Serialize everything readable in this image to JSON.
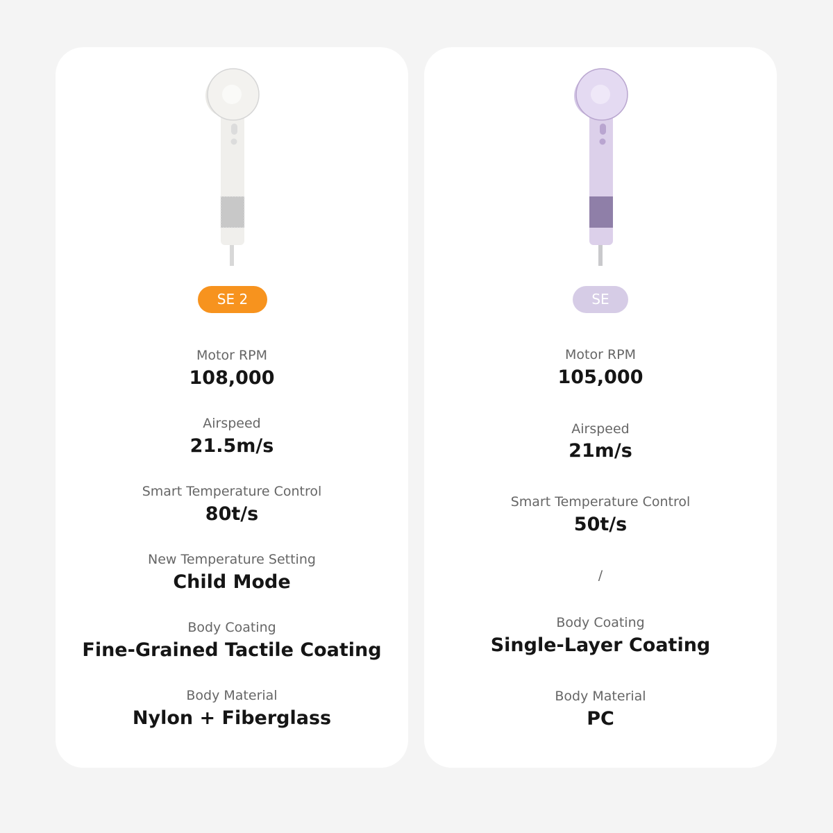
{
  "colors": {
    "background": "#f4f4f4",
    "card": "#ffffff",
    "se2_badge": "#f7931e",
    "se_badge": "#d6cce6",
    "label": "#666666",
    "value": "#151515"
  },
  "products": [
    {
      "badge": "SE 2",
      "product_color": "white",
      "specs": [
        {
          "label": "Motor RPM",
          "value": "108,000"
        },
        {
          "label": "Airspeed",
          "value": "21.5m/s"
        },
        {
          "label": "Smart Temperature Control",
          "value": "80t/s"
        },
        {
          "label": "New Temperature Setting",
          "value": "Child Mode"
        },
        {
          "label": "Body Coating",
          "value": "Fine-Grained Tactile Coating"
        },
        {
          "label": "Body Material",
          "value": "Nylon + Fiberglass"
        }
      ]
    },
    {
      "badge": "SE",
      "product_color": "lavender",
      "specs": [
        {
          "label": "Motor RPM",
          "value": "105,000"
        },
        {
          "label": "Airspeed",
          "value": "21m/s"
        },
        {
          "label": "Smart Temperature Control",
          "value": "50t/s"
        },
        {
          "label": "",
          "value": "/"
        },
        {
          "label": "Body Coating",
          "value": "Single-Layer Coating"
        },
        {
          "label": "Body Material",
          "value": "PC"
        }
      ]
    }
  ]
}
